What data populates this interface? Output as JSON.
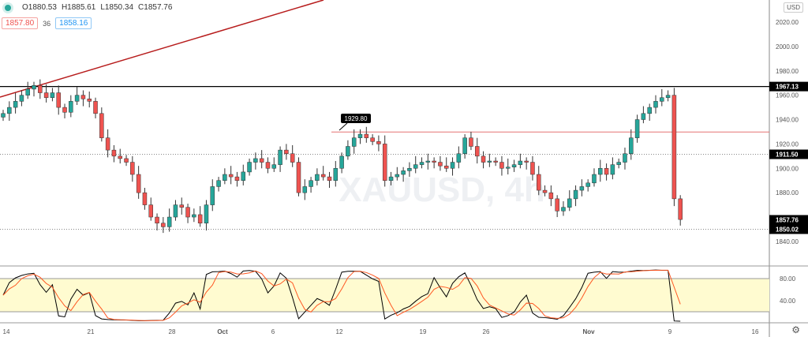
{
  "symbol_watermark": "XAUUSD, 4h",
  "ohlc": {
    "open": "O1880.53",
    "high": "H1885.61",
    "low": "L1850.34",
    "close": "C1857.76"
  },
  "bid": "1857.80",
  "spread": "36",
  "ask": "1858.16",
  "currency_button": "USD",
  "colors": {
    "up": "#26a69a",
    "down": "#ef5350",
    "trend": "#b71c1c",
    "stoch_k": "#000000",
    "stoch_d": "#ff5722",
    "band": "#fffbd0"
  },
  "price_axis": [
    "2020.00",
    "2000.00",
    "1980.00",
    "1960.00",
    "1940.00",
    "1920.00",
    "1900.00",
    "1880.00",
    "1840.00"
  ],
  "price_labels": [
    {
      "text": "1967.13",
      "value": 1967.13
    },
    {
      "text": "1911.50",
      "value": 1911.5
    },
    {
      "text": "1857.76",
      "value": 1857.76
    },
    {
      "text": "1850.02",
      "value": 1850.02
    }
  ],
  "callout": "1929.80",
  "stoch_axis": [
    "80.00",
    "40.00"
  ],
  "time_axis": [
    "14",
    "21",
    "28",
    "Oct",
    "6",
    "12",
    "19",
    "26",
    "Nov",
    "9",
    "16"
  ],
  "chart_data": {
    "type": "candlestick",
    "ylim": [
      1830,
      2030
    ],
    "closes": [
      1945,
      1950,
      1955,
      1960,
      1965,
      1968,
      1962,
      1958,
      1962,
      1950,
      1946,
      1955,
      1960,
      1957,
      1955,
      1945,
      1925,
      1915,
      1910,
      1908,
      1905,
      1895,
      1880,
      1870,
      1860,
      1855,
      1852,
      1860,
      1870,
      1868,
      1860,
      1862,
      1855,
      1870,
      1885,
      1890,
      1895,
      1893,
      1890,
      1897,
      1905,
      1908,
      1905,
      1900,
      1903,
      1915,
      1912,
      1905,
      1880,
      1885,
      1890,
      1895,
      1893,
      1890,
      1900,
      1910,
      1918,
      1925,
      1928,
      1925,
      1922,
      1920,
      1890,
      1893,
      1895,
      1898,
      1900,
      1903,
      1905,
      1906,
      1905,
      1902,
      1900,
      1905,
      1912,
      1925,
      1918,
      1910,
      1905,
      1906,
      1905,
      1900,
      1901,
      1903,
      1906,
      1905,
      1895,
      1882,
      1880,
      1875,
      1865,
      1868,
      1875,
      1882,
      1885,
      1888,
      1895,
      1900,
      1895,
      1903,
      1905,
      1912,
      1925,
      1940,
      1945,
      1950,
      1955,
      1958,
      1960,
      1875,
      1858
    ]
  }
}
